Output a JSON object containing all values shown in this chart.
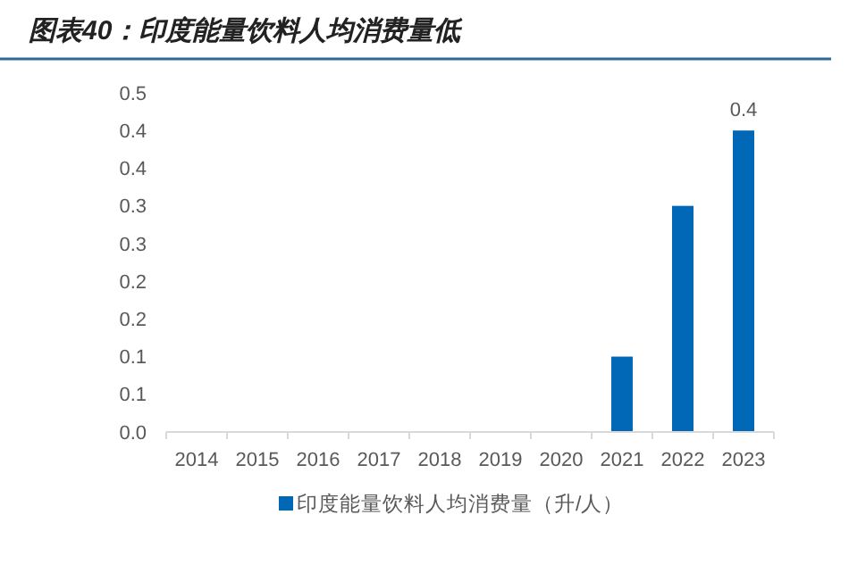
{
  "chart_data": {
    "type": "bar",
    "title": "图表40：印度能量饮料人均消费量低",
    "categories": [
      "2014",
      "2015",
      "2016",
      "2017",
      "2018",
      "2019",
      "2020",
      "2021",
      "2022",
      "2023"
    ],
    "series": [
      {
        "name": "印度能量饮料人均消费量（升/人）",
        "color": "#0068b7",
        "values": [
          0,
          0,
          0,
          0,
          0,
          0,
          0,
          0.1,
          0.3,
          0.4
        ],
        "value_labels": [
          null,
          null,
          null,
          null,
          null,
          null,
          null,
          null,
          null,
          "0.4"
        ]
      }
    ],
    "ylim": [
      0,
      0.45
    ],
    "yticks": [
      {
        "value": 0,
        "label": "0.0"
      },
      {
        "value": 0.05,
        "label": "0.1"
      },
      {
        "value": 0.1,
        "label": "0.1"
      },
      {
        "value": 0.15,
        "label": "0.2"
      },
      {
        "value": 0.2,
        "label": "0.2"
      },
      {
        "value": 0.25,
        "label": "0.3"
      },
      {
        "value": 0.3,
        "label": "0.3"
      },
      {
        "value": 0.35,
        "label": "0.4"
      },
      {
        "value": 0.4,
        "label": "0.4"
      },
      {
        "value": 0.45,
        "label": "0.5"
      }
    ],
    "grid": false,
    "legend": "bottom"
  }
}
